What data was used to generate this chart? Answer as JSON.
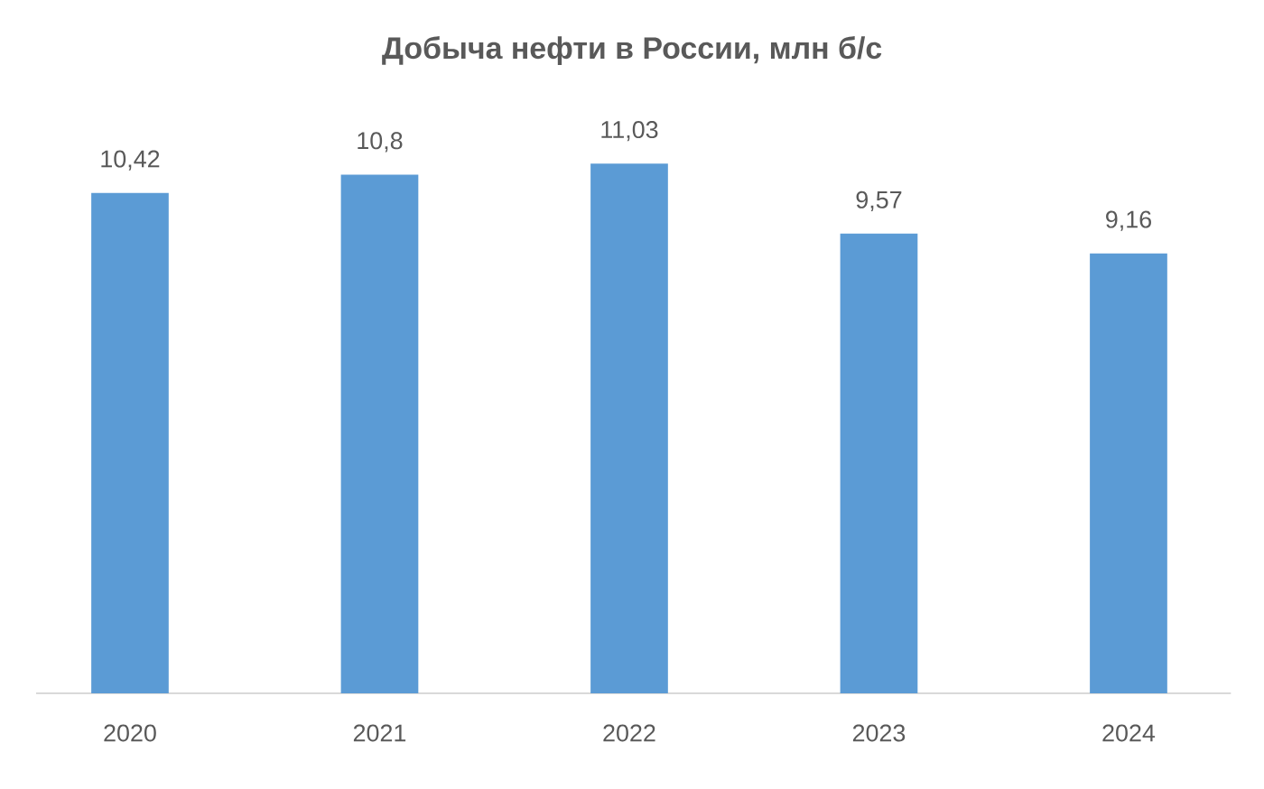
{
  "chart_data": {
    "type": "bar",
    "title": "Добыча нефти в России, млн б/с",
    "categories": [
      "2020",
      "2021",
      "2022",
      "2023",
      "2024"
    ],
    "values": [
      10.42,
      10.8,
      11.03,
      9.57,
      9.16
    ],
    "value_labels": [
      "10,42",
      "10,8",
      "11,03",
      "9,57",
      "9,16"
    ],
    "color": "#5b9bd5",
    "tick_labels": "x"
  }
}
